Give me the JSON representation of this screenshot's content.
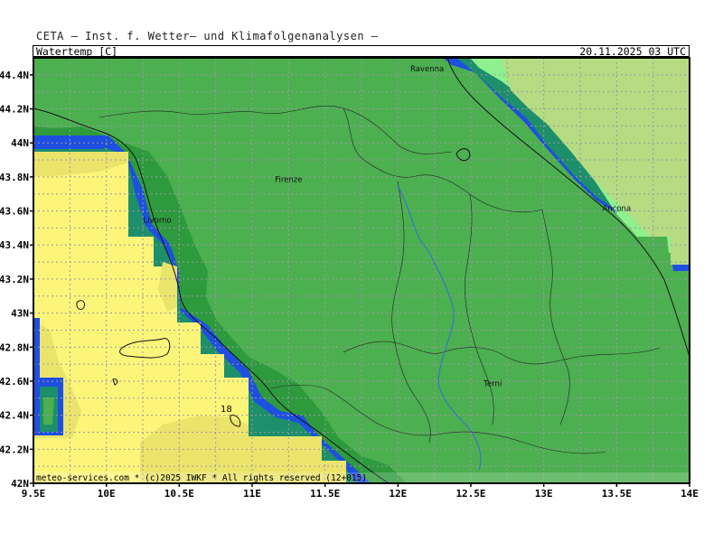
{
  "header": {
    "title": "CETA — Inst. f. Wetter— und Klimafolgenanalysen —",
    "variable": "Watertemp [C]",
    "datetime": "20.11.2025 03 UTC"
  },
  "footer": {
    "credit": "meteo-services.com * (c)2025 IWKF * All rights reserved (12+015)"
  },
  "map": {
    "lon_range": [
      9.5,
      14.0
    ],
    "lat_range": [
      42.0,
      44.5
    ],
    "lon_ticks": [
      "9.5E",
      "10E",
      "10.5E",
      "11E",
      "11.5E",
      "12E",
      "12.5E",
      "13E",
      "13.5E",
      "14E"
    ],
    "lat_ticks": [
      "42N",
      "42.2N",
      "42.4N",
      "42.6N",
      "42.8N",
      "43N",
      "43.2N",
      "43.4N",
      "43.6N",
      "43.8N",
      "44N",
      "44.2N",
      "44.4N"
    ],
    "cities": [
      {
        "name": "Ravenna",
        "lon": 12.2,
        "lat": 44.42
      },
      {
        "name": "Firenze",
        "lon": 11.25,
        "lat": 43.77
      },
      {
        "name": "Livorno",
        "lon": 10.35,
        "lat": 43.53
      },
      {
        "name": "Ancona",
        "lon": 13.5,
        "lat": 43.6
      },
      {
        "name": "Terni",
        "lon": 12.65,
        "lat": 42.57
      }
    ],
    "contour_label": "18",
    "colors": {
      "land": "#4caf50",
      "coast_dark": "#2e9a3e",
      "blue": "#1e4fe0",
      "teal": "#1d8f6a",
      "light_green": "#8ef08e",
      "pale_green": "#b5dc82",
      "yellow": "#fdf57a",
      "yellow_dim": "#ebe46c"
    }
  }
}
